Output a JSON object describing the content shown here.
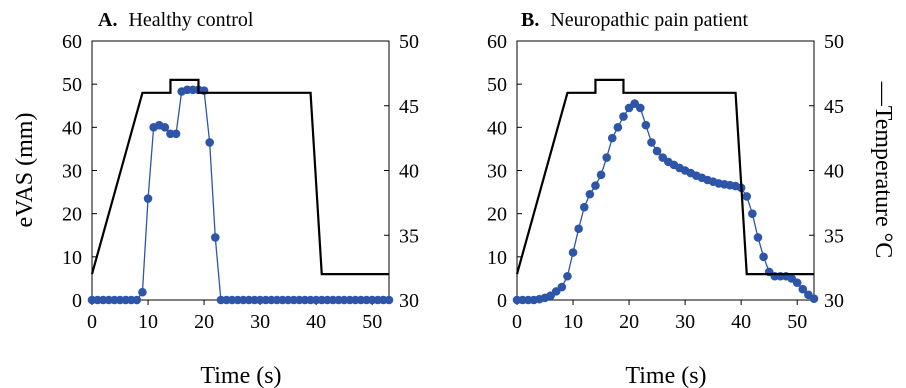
{
  "colors": {
    "evas": "#2d55a8",
    "temperature": "#000000"
  },
  "axes": {
    "left_label": "eVAS (mm)",
    "right_label": "—Temperature °C",
    "x_label": "Time (s)",
    "left_ticks": [
      "60",
      "50",
      "40",
      "30",
      "20",
      "10",
      "0"
    ],
    "right_ticks": [
      "50",
      "45",
      "40",
      "35",
      "30"
    ],
    "x_ticks": [
      "0",
      "10",
      "20",
      "30",
      "40",
      "50"
    ]
  },
  "chart_data": [
    {
      "type": "line",
      "panel_letter": "A.",
      "panel_title": "Healthy control",
      "xlim": [
        0,
        53
      ],
      "ylim": [
        0,
        60
      ],
      "y2lim": [
        30,
        50
      ],
      "series": [
        {
          "axis": "left",
          "marker": "circle",
          "x": [
            0,
            1,
            2,
            3,
            4,
            5,
            6,
            7,
            8,
            9,
            10,
            11,
            12,
            13,
            14,
            15,
            16,
            17,
            18,
            19,
            20,
            21,
            22,
            23,
            24,
            25,
            26,
            27,
            28,
            29,
            30,
            31,
            32,
            33,
            34,
            35,
            36,
            37,
            38,
            39,
            40,
            41,
            42,
            43,
            44,
            45,
            46,
            47,
            48,
            49,
            50,
            51,
            52,
            53
          ],
          "y": [
            0,
            0,
            0,
            0,
            0,
            0,
            0,
            0,
            0,
            1.8,
            23.5,
            40,
            40.5,
            40,
            38.5,
            38.5,
            48.3,
            48.7,
            48.7,
            48.7,
            48.5,
            36.5,
            14.5,
            0,
            0,
            0,
            0,
            0,
            0,
            0,
            0,
            0,
            0,
            0,
            0,
            0,
            0,
            0,
            0,
            0,
            0,
            0,
            0,
            0,
            0,
            0,
            0,
            0,
            0,
            0,
            0,
            0,
            0,
            0
          ]
        },
        {
          "axis": "right",
          "x": [
            0,
            9,
            14,
            14,
            19,
            19,
            39,
            41,
            53
          ],
          "y": [
            32,
            46,
            46,
            47,
            47,
            46,
            46,
            32,
            32
          ]
        }
      ]
    },
    {
      "type": "line",
      "panel_letter": "B.",
      "panel_title": "Neuropathic pain patient",
      "xlim": [
        0,
        53
      ],
      "ylim": [
        0,
        60
      ],
      "y2lim": [
        30,
        50
      ],
      "series": [
        {
          "axis": "left",
          "marker": "circle",
          "x": [
            0,
            1,
            2,
            3,
            4,
            5,
            6,
            7,
            8,
            9,
            10,
            11,
            12,
            13,
            14,
            15,
            16,
            17,
            18,
            19,
            20,
            21,
            22,
            23,
            24,
            25,
            26,
            27,
            28,
            29,
            30,
            31,
            32,
            33,
            34,
            35,
            36,
            37,
            38,
            39,
            40,
            41,
            42,
            43,
            44,
            45,
            46,
            47,
            48,
            49,
            50,
            51,
            52,
            53
          ],
          "y": [
            0,
            0,
            0,
            0,
            0.2,
            0.5,
            1,
            2,
            3,
            5.5,
            11,
            16.5,
            21.5,
            24.5,
            26.5,
            29,
            33,
            37.5,
            40,
            42.5,
            44.5,
            45.5,
            44.5,
            40.5,
            36.5,
            34.5,
            33,
            32,
            31.3,
            30.6,
            30,
            29.4,
            28.8,
            28.3,
            27.8,
            27.4,
            27,
            26.8,
            26.6,
            26.4,
            26,
            24,
            20,
            14.5,
            10,
            6.5,
            5.5,
            5.5,
            5.5,
            5,
            4,
            2.5,
            1.2,
            0.3
          ]
        },
        {
          "axis": "right",
          "x": [
            0,
            9,
            14,
            14,
            19,
            19,
            39,
            41,
            53
          ],
          "y": [
            32,
            46,
            46,
            47,
            47,
            46,
            46,
            32,
            32
          ]
        }
      ]
    }
  ]
}
